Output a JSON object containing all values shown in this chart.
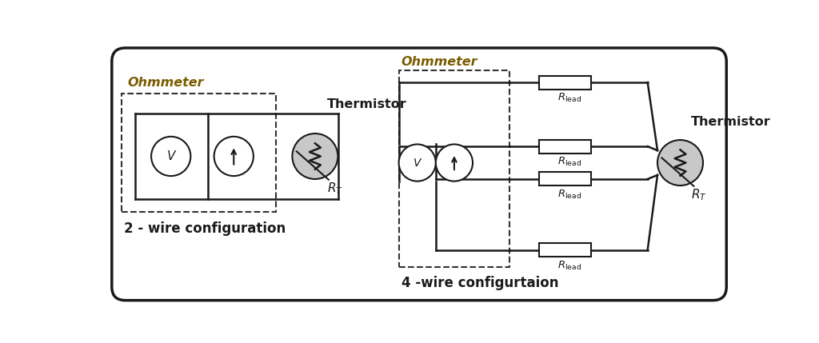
{
  "fig_width": 10.24,
  "fig_height": 4.29,
  "bg_color": "#ffffff",
  "label_color": "#1a1a1a",
  "line_color": "#1a1a1a",
  "dashed_color": "#333333",
  "component_fill": "#c8c8c8",
  "title1": "2 - wire configuration",
  "title2": "4 -wire configurtaion",
  "ohmmeter_label": "Ohmmeter",
  "thermistor_label": "Thermistor"
}
